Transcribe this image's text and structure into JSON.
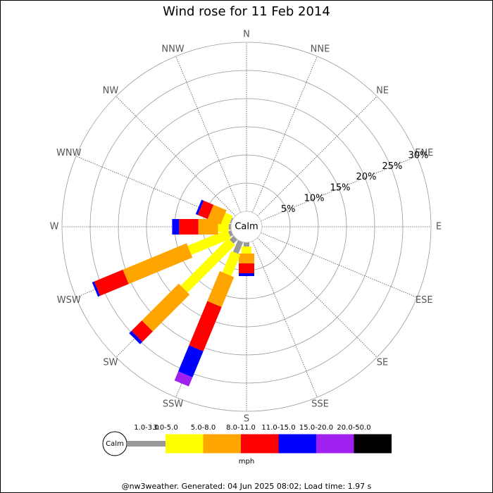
{
  "chart_data": {
    "type": "windrose",
    "title": "Wind rose for 11 Feb 2014",
    "calm_label": "Calm",
    "categories": [
      "N",
      "NNE",
      "NE",
      "ENE",
      "E",
      "ESE",
      "SE",
      "SSE",
      "S",
      "SSW",
      "SW",
      "WSW",
      "W",
      "WNW",
      "NW",
      "NNW"
    ],
    "rlim": [
      0,
      30
    ],
    "rticks": [
      {
        "value": 5,
        "label": "5%"
      },
      {
        "value": 10,
        "label": "10%"
      },
      {
        "value": 15,
        "label": "15%"
      },
      {
        "value": 20,
        "label": "20%"
      },
      {
        "value": 25,
        "label": "25%"
      },
      {
        "value": 30,
        "label": "30%"
      }
    ],
    "series": [
      {
        "name": "1.0-3.0",
        "color": "#999999",
        "values": [
          0,
          0,
          0,
          0,
          0,
          0,
          0,
          0,
          0.75,
          2.25,
          1,
          0.6,
          0.4,
          0.25,
          0,
          0
        ]
      },
      {
        "name": "3.0-5.0",
        "color": "#ffff00",
        "values": [
          0,
          0,
          0,
          0,
          0,
          0,
          0,
          0,
          1.25,
          4.1,
          11.9,
          7.6,
          1.9,
          1.4,
          0,
          0
        ]
      },
      {
        "name": "5.0-8.0",
        "color": "#ffa500",
        "values": [
          0,
          0,
          0,
          0,
          0,
          0,
          0,
          0,
          1.75,
          5.75,
          9.25,
          12.25,
          3.5,
          2.5,
          0,
          0
        ]
      },
      {
        "name": "8.0-11.0",
        "color": "#ff0000",
        "values": [
          0,
          0,
          0,
          0,
          0,
          0,
          0,
          0,
          1.75,
          8.5,
          2.6,
          5.5,
          3.4,
          1.9,
          0,
          0
        ]
      },
      {
        "name": "11.0-15.0",
        "color": "#0000ff",
        "values": [
          0,
          0,
          0,
          0,
          0,
          0,
          0,
          0,
          0.5,
          5,
          0.6,
          0.4,
          1.25,
          0.4,
          0,
          0
        ]
      },
      {
        "name": "15.0-20.0",
        "color": "#a020f0",
        "values": [
          0,
          0,
          0,
          0,
          0,
          0,
          0,
          0,
          0,
          1.75,
          0,
          0,
          0,
          0,
          0,
          0
        ]
      },
      {
        "name": "20.0-50.0",
        "color": "#000000",
        "values": [
          0,
          0,
          0,
          0,
          0,
          0,
          0,
          0,
          0,
          0,
          0,
          0,
          0,
          0,
          0,
          0
        ]
      }
    ],
    "legend_title": "mph",
    "footer": "@nw3weather. Generated: 04 Jun 2025 08:02; Load time: 1.97 s"
  }
}
